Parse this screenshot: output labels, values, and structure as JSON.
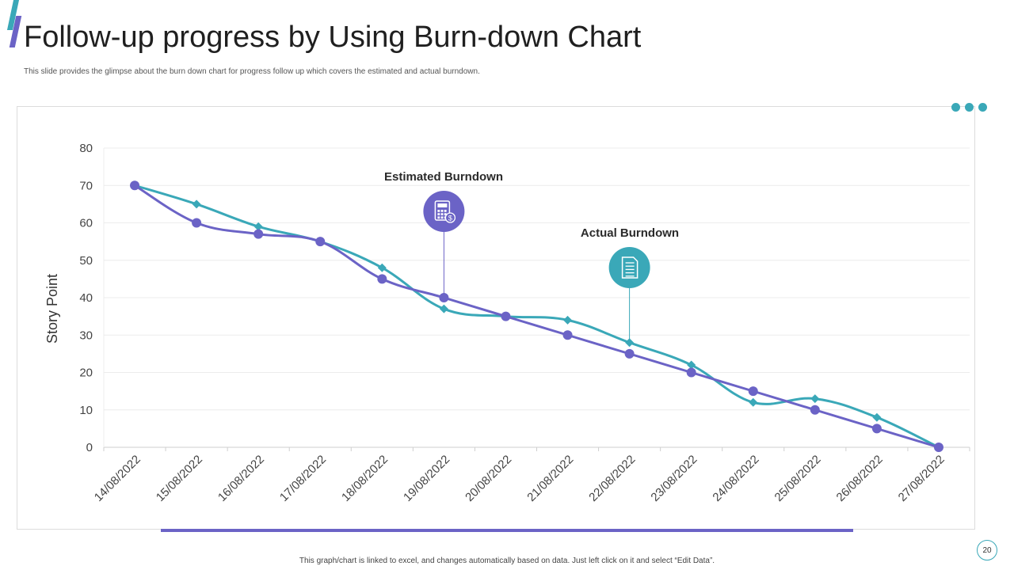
{
  "slide": {
    "title": "Follow-up progress by Using Burn-down Chart",
    "subtitle": "This slide provides the glimpse about the burn down chart for progress follow up which covers the estimated and actual burndown.",
    "footer": "This graph/chart is linked to excel,  and changes automatically based on data. Just left click on it and select “Edit Data”.",
    "page_number": "20"
  },
  "colors": {
    "estimated": "#6b63c6",
    "actual": "#3aa8b8",
    "grid": "#ececec",
    "axis": "#cfcfcf"
  },
  "icons": {
    "estimated": "calculator-dollar-icon",
    "actual": "document-icon"
  },
  "chart_data": {
    "type": "line",
    "ylabel": "Story Point",
    "xlabel": "",
    "ylim": [
      0,
      80
    ],
    "yticks": [
      0,
      10,
      20,
      30,
      40,
      50,
      60,
      70,
      80
    ],
    "grid": true,
    "categories": [
      "14/08/2022",
      "15/08/2022",
      "16/08/2022",
      "17/08/2022",
      "18/08/2022",
      "19/08/2022",
      "20/08/2022",
      "21/08/2022",
      "22/08/2022",
      "23/08/2022",
      "24/08/2022",
      "25/08/2022",
      "26/08/2022",
      "27/08/2022"
    ],
    "series": [
      {
        "name": "Estimated Burndown",
        "marker": "circle",
        "values": [
          70,
          60,
          57,
          55,
          45,
          40,
          35,
          30,
          25,
          20,
          15,
          10,
          5,
          0
        ]
      },
      {
        "name": "Actual Burndown",
        "marker": "diamond",
        "values": [
          70,
          65,
          59,
          55,
          48,
          37,
          35,
          34,
          28,
          22,
          12,
          13,
          8,
          0
        ]
      }
    ]
  }
}
